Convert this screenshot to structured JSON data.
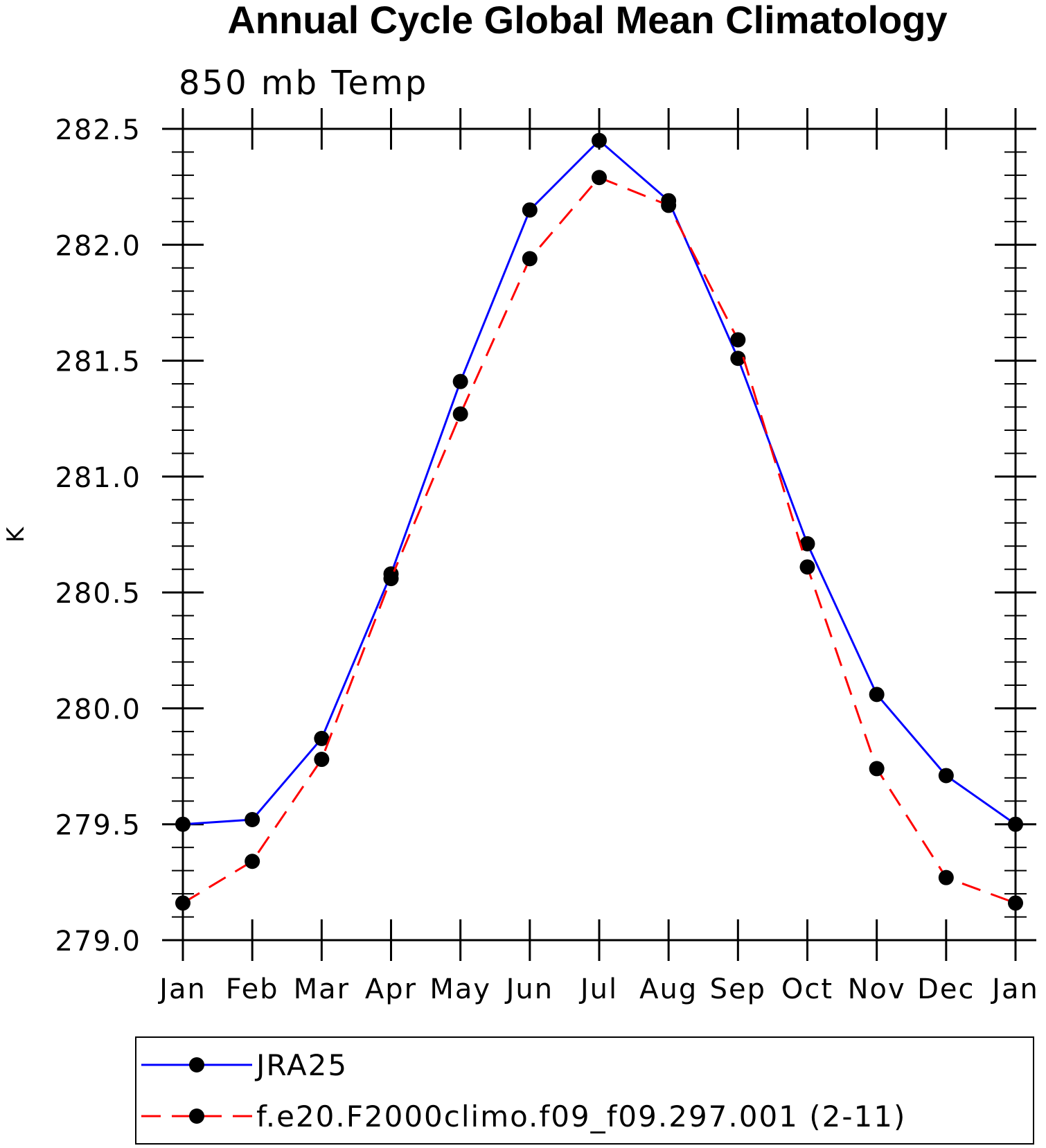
{
  "chart_data": {
    "type": "line",
    "title": "Annual Cycle Global Mean Climatology",
    "subtitle": "850 mb Temp",
    "ylabel": "K",
    "xlabel": "",
    "categories": [
      "Jan",
      "Feb",
      "Mar",
      "Apr",
      "May",
      "Jun",
      "Jul",
      "Aug",
      "Sep",
      "Oct",
      "Nov",
      "Dec",
      "Jan"
    ],
    "ylim": [
      279.0,
      282.5
    ],
    "yticks": [
      "279.0",
      "279.5",
      "280.0",
      "280.5",
      "281.0",
      "281.5",
      "282.0",
      "282.5"
    ],
    "ytick_values": [
      279.0,
      279.5,
      280.0,
      280.5,
      281.0,
      281.5,
      282.0,
      282.5
    ],
    "grid": false,
    "legend_position": "bottom",
    "series": [
      {
        "name": "JRA25",
        "color": "#0000ff",
        "style": "solid",
        "marker": "filled-circle",
        "values": [
          279.5,
          279.52,
          279.87,
          280.58,
          281.41,
          282.15,
          282.45,
          282.19,
          281.51,
          280.71,
          280.06,
          279.71,
          279.5
        ]
      },
      {
        "name": "f.e20.F2000climo.f09_f09.297.001 (2-11)",
        "color": "#ff0000",
        "style": "dashed",
        "marker": "filled-circle",
        "values": [
          279.16,
          279.34,
          279.78,
          280.56,
          281.27,
          281.94,
          282.29,
          282.17,
          281.59,
          280.61,
          279.74,
          279.27,
          279.16
        ]
      }
    ]
  }
}
